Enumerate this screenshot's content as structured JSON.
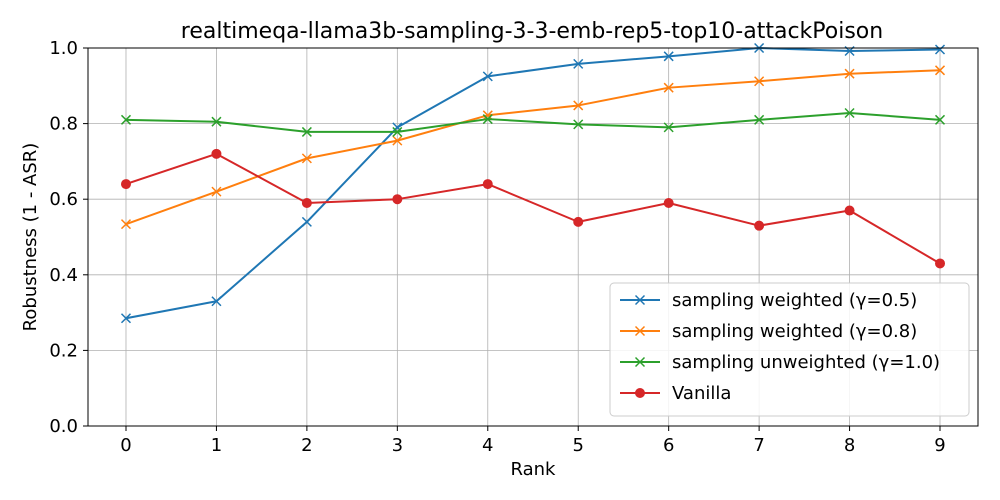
{
  "chart_data": {
    "type": "line",
    "title": "realtimeqa-llama3b-sampling-3-3-emb-rep5-top10-attackPoison",
    "xlabel": "Rank",
    "ylabel": "Robustness (1 - ASR)",
    "x": [
      0,
      1,
      2,
      3,
      4,
      5,
      6,
      7,
      8,
      9
    ],
    "xlim": [
      -0.42,
      9.42
    ],
    "ylim": [
      0,
      1.0
    ],
    "yticks": [
      "0.0",
      "0.2",
      "0.4",
      "0.6",
      "0.8",
      "1.0"
    ],
    "xticks": [
      "0",
      "1",
      "2",
      "3",
      "4",
      "5",
      "6",
      "7",
      "8",
      "9"
    ],
    "grid": true,
    "legend_position": "lower-right",
    "series": [
      {
        "name": "sampling weighted (γ=0.5)",
        "color": "#1f77b4",
        "marker": "x",
        "values": [
          0.285,
          0.33,
          0.54,
          0.79,
          0.925,
          0.958,
          0.978,
          1.0,
          0.992,
          0.996
        ]
      },
      {
        "name": "sampling weighted (γ=0.8)",
        "color": "#ff7f0e",
        "marker": "x",
        "values": [
          0.534,
          0.62,
          0.708,
          0.755,
          0.822,
          0.848,
          0.895,
          0.912,
          0.932,
          0.941
        ]
      },
      {
        "name": "sampling unweighted (γ=1.0)",
        "color": "#2ca02c",
        "marker": "x",
        "values": [
          0.81,
          0.805,
          0.778,
          0.778,
          0.812,
          0.798,
          0.79,
          0.81,
          0.828,
          0.81
        ]
      },
      {
        "name": "Vanilla",
        "color": "#d62728",
        "marker": "o",
        "values": [
          0.64,
          0.72,
          0.59,
          0.6,
          0.64,
          0.54,
          0.59,
          0.53,
          0.57,
          0.43
        ]
      }
    ]
  }
}
